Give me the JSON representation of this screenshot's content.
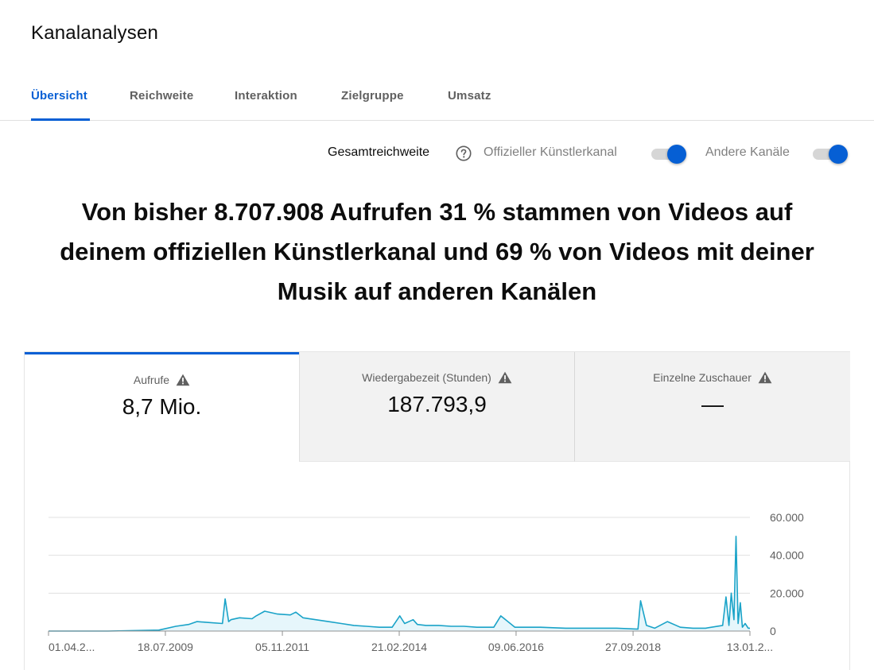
{
  "page": {
    "title": "Kanalanalysen"
  },
  "tabs": [
    {
      "label": "Übersicht",
      "active": true
    },
    {
      "label": "Reichweite",
      "active": false
    },
    {
      "label": "Interaktion",
      "active": false
    },
    {
      "label": "Zielgruppe",
      "active": false
    },
    {
      "label": "Umsatz",
      "active": false
    }
  ],
  "toggles": {
    "title": "Gesamtreichweite",
    "help_icon": "help-circle-icon",
    "items": [
      {
        "label": "Offizieller Künstlerkanal",
        "on": true
      },
      {
        "label": "Andere Kanäle",
        "on": true
      }
    ]
  },
  "headline": "Von bisher 8.707.908 Aufrufen 31 % stammen von Videos auf deinem offiziellen Künstlerkanal und 69 % von Videos mit deiner Musik auf anderen Kanälen",
  "metrics": [
    {
      "label": "Aufrufe",
      "value": "8,7 Mio.",
      "icon": "warning-icon",
      "selected": true
    },
    {
      "label": "Wiedergabezeit (Stunden)",
      "value": "187.793,9",
      "icon": "warning-icon",
      "selected": false
    },
    {
      "label": "Einzelne Zuschauer",
      "value": "—",
      "icon": "warning-icon",
      "selected": false
    }
  ],
  "colors": {
    "accent": "#065fd4",
    "line": "#1aa3c8",
    "area": "#e6f6fb",
    "grid": "#e0e0e0"
  },
  "chart_data": {
    "type": "area",
    "ylim": [
      0,
      60000
    ],
    "y_ticks": [
      "60.000",
      "40.000",
      "20.000",
      "0"
    ],
    "x_ticks": [
      "01.04.2...",
      "18.07.2009",
      "05.11.2011",
      "21.02.2014",
      "09.06.2016",
      "27.09.2018",
      "13.01.2..."
    ],
    "x_tick_dates": [
      "2007-04-01",
      "2009-07-18",
      "2011-11-05",
      "2014-02-21",
      "2016-06-09",
      "2018-09-27",
      "2021-01-13"
    ],
    "series": [
      {
        "x": [
          "2007-04-01",
          "2008-06-01",
          "2009-06-01",
          "2009-10-01",
          "2010-01-01",
          "2010-03-01",
          "2010-06-01",
          "2010-09-01",
          "2010-09-20",
          "2010-10-15",
          "2010-11-01",
          "2011-01-01",
          "2011-04-01",
          "2011-05-01",
          "2011-07-01",
          "2011-10-01",
          "2012-01-01",
          "2012-02-10",
          "2012-04-01",
          "2012-07-01",
          "2012-10-01",
          "2013-01-01",
          "2013-04-01",
          "2013-07-01",
          "2013-10-01",
          "2014-01-01",
          "2014-02-25",
          "2014-04-01",
          "2014-06-01",
          "2014-07-01",
          "2014-09-01",
          "2014-12-01",
          "2015-03-01",
          "2015-06-01",
          "2015-09-01",
          "2016-01-01",
          "2016-02-20",
          "2016-06-01",
          "2016-12-01",
          "2017-06-01",
          "2017-12-01",
          "2018-06-01",
          "2018-11-01",
          "2018-11-20",
          "2019-01-01",
          "2019-03-01",
          "2019-06-01",
          "2019-09-01",
          "2019-12-01",
          "2020-03-01",
          "2020-07-01",
          "2020-07-25",
          "2020-08-15",
          "2020-09-01",
          "2020-09-20",
          "2020-10-05",
          "2020-10-20",
          "2020-11-05",
          "2020-11-20",
          "2020-12-10",
          "2021-01-01",
          "2021-03-01"
        ],
        "y": [
          0,
          0,
          500,
          2500,
          3500,
          5000,
          4500,
          4000,
          17000,
          5000,
          6000,
          7000,
          6500,
          8000,
          10500,
          9000,
          8500,
          10000,
          7000,
          6000,
          5000,
          4000,
          3000,
          2500,
          2000,
          2000,
          8000,
          4000,
          6000,
          3500,
          3000,
          3000,
          2500,
          2500,
          2000,
          2000,
          8000,
          2000,
          2000,
          1500,
          1500,
          1500,
          1000,
          16000,
          3000,
          1500,
          5000,
          2000,
          1500,
          1500,
          3000,
          18000,
          3000,
          20000,
          6000,
          50000,
          4000,
          15000,
          2000,
          4000,
          1500,
          1500
        ]
      }
    ]
  }
}
